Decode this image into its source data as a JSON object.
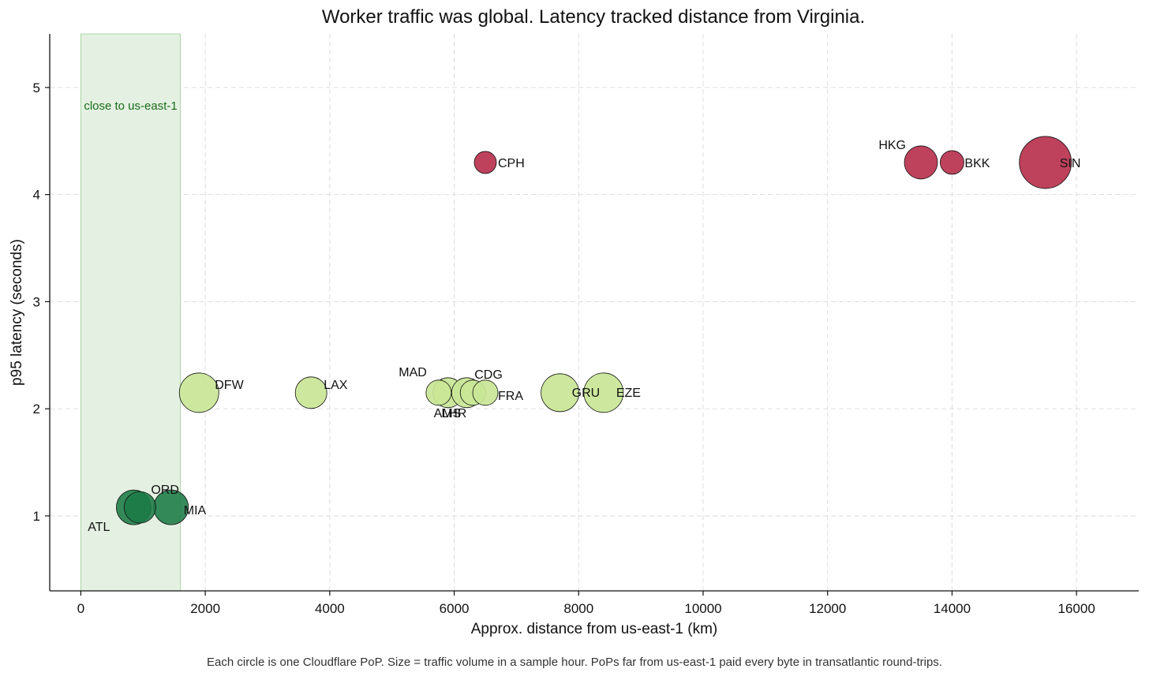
{
  "title": "Worker traffic was global. Latency tracked distance from Virginia.",
  "caption": "Each circle is one Cloudflare PoP. Size = traffic volume in a sample hour. PoPs far from us-east-1 paid every byte in transatlantic round-trips.",
  "colors": {
    "near": "#1b7a45",
    "mid": "#c9e696",
    "far": "#b8324e",
    "band_fill": "#e4f1e2",
    "band_edge": "#a9d6a3",
    "band_text": "#1a6b1a",
    "grid": "#dddddd"
  },
  "chart_data": {
    "type": "scatter",
    "title": "Worker traffic was global. Latency tracked distance from Virginia.",
    "xlabel": "Approx. distance from us-east-1 (km)",
    "ylabel": "p95 latency (seconds)",
    "xlim": [
      -500,
      17000
    ],
    "ylim": [
      0.3,
      5.5
    ],
    "xticks": [
      0,
      2000,
      4000,
      6000,
      8000,
      10000,
      12000,
      14000,
      16000
    ],
    "yticks": [
      1,
      2,
      3,
      4,
      5
    ],
    "grid": true,
    "band": {
      "x_start": 0,
      "x_end": 1600,
      "label": "close to us-east-1"
    },
    "points": [
      {
        "label": "ATL",
        "x": 850,
        "y": 1.08,
        "size": 22,
        "group": "near"
      },
      {
        "label": "ORD",
        "x": 950,
        "y": 1.08,
        "size": 20,
        "group": "near"
      },
      {
        "label": "MIA",
        "x": 1450,
        "y": 1.08,
        "size": 22,
        "group": "near"
      },
      {
        "label": "DFW",
        "x": 1900,
        "y": 2.15,
        "size": 25,
        "group": "mid"
      },
      {
        "label": "LAX",
        "x": 3700,
        "y": 2.15,
        "size": 20,
        "group": "mid"
      },
      {
        "label": "MAD",
        "x": 5750,
        "y": 2.15,
        "size": 16,
        "group": "mid"
      },
      {
        "label": "AMS",
        "x": 5900,
        "y": 2.15,
        "size": 19,
        "group": "mid"
      },
      {
        "label": "LHR",
        "x": 6200,
        "y": 2.15,
        "size": 19,
        "group": "mid"
      },
      {
        "label": "CDG",
        "x": 6300,
        "y": 2.15,
        "size": 16,
        "group": "mid"
      },
      {
        "label": "FRA",
        "x": 6500,
        "y": 2.15,
        "size": 16,
        "group": "mid"
      },
      {
        "label": "GRU",
        "x": 7700,
        "y": 2.15,
        "size": 24,
        "group": "mid"
      },
      {
        "label": "EZE",
        "x": 8400,
        "y": 2.15,
        "size": 25,
        "group": "mid"
      },
      {
        "label": "CPH",
        "x": 6500,
        "y": 4.3,
        "size": 14,
        "group": "far"
      },
      {
        "label": "HKG",
        "x": 13500,
        "y": 4.3,
        "size": 21,
        "group": "far"
      },
      {
        "label": "BKK",
        "x": 14000,
        "y": 4.3,
        "size": 15,
        "group": "far"
      },
      {
        "label": "SIN",
        "x": 15500,
        "y": 4.3,
        "size": 33,
        "group": "far"
      }
    ]
  }
}
